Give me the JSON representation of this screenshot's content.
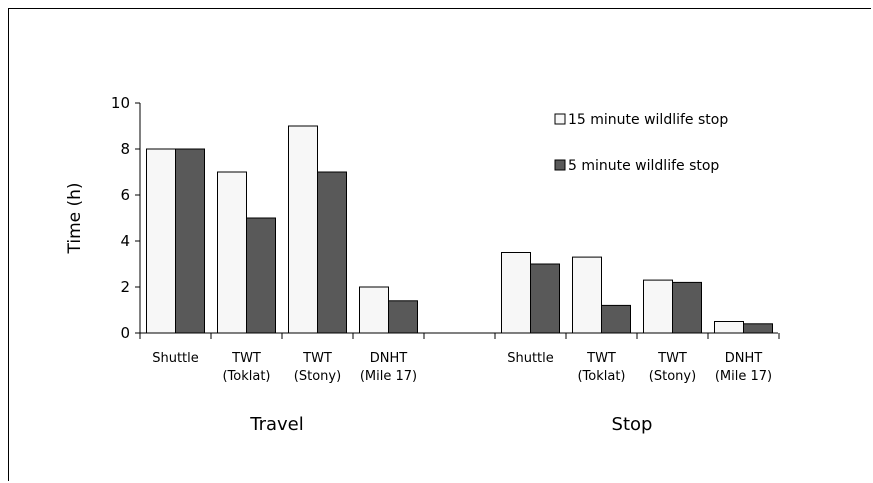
{
  "chart_data": {
    "type": "bar",
    "ylabel": "Time (h)",
    "ylim": [
      0,
      10
    ],
    "yticks": [
      "0",
      "2",
      "4",
      "6",
      "8",
      "10"
    ],
    "groups": [
      {
        "label": "Travel",
        "categories": [
          {
            "line1": "Shuttle",
            "line2": ""
          },
          {
            "line1": "TWT",
            "line2": "(Toklat)"
          },
          {
            "line1": "TWT",
            "line2": "(Stony)"
          },
          {
            "line1": "DNHT",
            "line2": "(Mile 17)"
          }
        ]
      },
      {
        "label": "Stop",
        "categories": [
          {
            "line1": "Shuttle",
            "line2": ""
          },
          {
            "line1": "TWT",
            "line2": "(Toklat)"
          },
          {
            "line1": "TWT",
            "line2": "(Stony)"
          },
          {
            "line1": "DNHT",
            "line2": "(Mile 17)"
          }
        ]
      }
    ],
    "series": [
      {
        "name": "15 minute wildlife stop",
        "color": "#f7f7f7",
        "values": [
          8,
          7,
          9,
          2,
          3.5,
          3.3,
          2.3,
          0.5
        ]
      },
      {
        "name": "5 minute wildlife stop",
        "color": "#595959",
        "values": [
          8,
          5,
          7,
          1.4,
          3,
          1.2,
          2.2,
          0.4
        ]
      }
    ],
    "legend_position": "top-right",
    "grid": false
  }
}
